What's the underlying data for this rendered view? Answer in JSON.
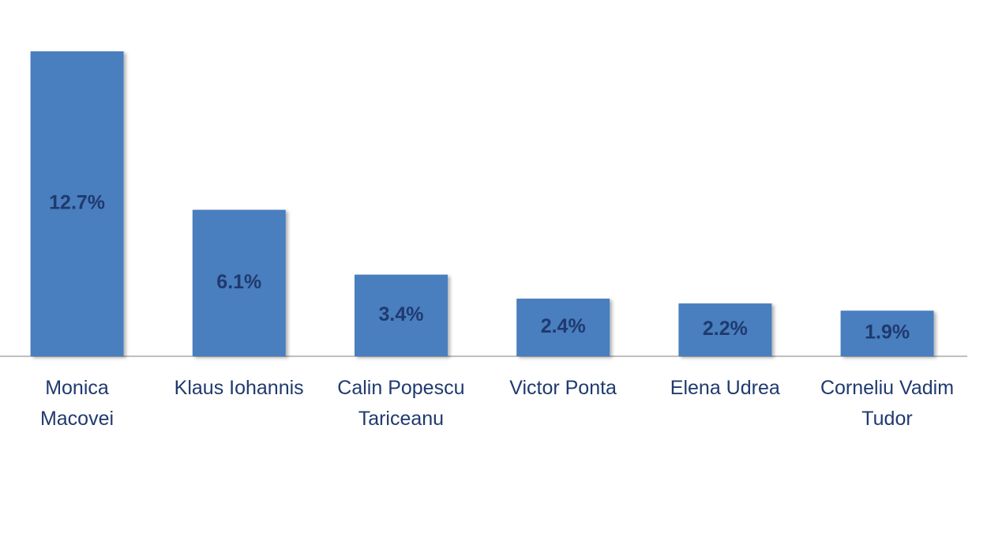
{
  "chart_data": {
    "type": "bar",
    "categories": [
      "Monica\nMacovei",
      "Klaus Iohannis",
      "Calin Popescu\nTariceanu",
      "Victor Ponta",
      "Elena Udrea",
      "Corneliu Vadim\nTudor"
    ],
    "values": [
      12.7,
      6.1,
      3.4,
      2.4,
      2.2,
      1.9
    ],
    "value_labels": [
      "12.7%",
      "6.1%",
      "3.4%",
      "2.4%",
      "2.2%",
      "1.9%"
    ],
    "color": "#4a7ebf"
  }
}
